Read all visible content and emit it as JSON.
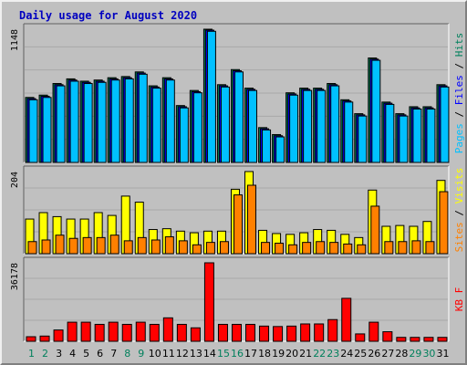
{
  "chart_data": {
    "title": "Daily usage for August 2020",
    "type": "bar",
    "days": [
      "1",
      "2",
      "3",
      "4",
      "5",
      "6",
      "7",
      "8",
      "9",
      "10",
      "11",
      "12",
      "13",
      "14",
      "15",
      "16",
      "17",
      "18",
      "19",
      "20",
      "21",
      "22",
      "23",
      "24",
      "25",
      "26",
      "27",
      "28",
      "29",
      "30",
      "31"
    ],
    "weekend_days": [
      "1",
      "2",
      "8",
      "9",
      "15",
      "16",
      "22",
      "23",
      "29",
      "30"
    ],
    "colors": {
      "hits": "#00805c",
      "files": "#0000ff",
      "pages": "#00c0ff",
      "visits": "#ffff00",
      "sites": "#ff8000",
      "kbytes": "#ff0000",
      "weekday_label": "#000000",
      "weekend_label": "#00805c"
    },
    "panels": [
      {
        "id": "hits",
        "ymax_label": "1148",
        "ymax": 1148,
        "legend": [
          "Pages",
          "/",
          "Files",
          "/",
          "Hits"
        ],
        "series": [
          {
            "name": "Hits",
            "values": [
              560,
              580,
              680,
              720,
              700,
              710,
              730,
              740,
              780,
              660,
              730,
              490,
              620,
              1148,
              670,
              800,
              640,
              300,
              240,
              600,
              640,
              640,
              680,
              540,
              420,
              900,
              520,
              420,
              480,
              480,
              670
            ]
          },
          {
            "name": "Files",
            "values": [
              550,
              570,
              670,
              710,
              690,
              700,
              720,
              730,
              770,
              650,
              720,
              480,
              610,
              1140,
              660,
              790,
              630,
              290,
              230,
              590,
              630,
              630,
              670,
              530,
              410,
              890,
              510,
              410,
              470,
              470,
              660
            ]
          },
          {
            "name": "Pages",
            "values": [
              540,
              560,
              660,
              700,
              680,
              690,
              710,
              720,
              760,
              640,
              710,
              470,
              600,
              1130,
              650,
              780,
              620,
              280,
              220,
              580,
              620,
              620,
              660,
              520,
              400,
              880,
              500,
              400,
              460,
              460,
              650
            ]
          }
        ]
      },
      {
        "id": "visits",
        "ymax_label": "204",
        "ymax": 204,
        "legend": [
          "Sites",
          "/",
          "Visits"
        ],
        "series": [
          {
            "name": "Visits",
            "values": [
              86,
              102,
              92,
              86,
              86,
              102,
              95,
              143,
              128,
              60,
              62,
              56,
              52,
              56,
              56,
              160,
              204,
              58,
              50,
              48,
              52,
              60,
              58,
              48,
              40,
              158,
              68,
              70,
              68,
              80,
              182
            ]
          },
          {
            "name": "Sites",
            "values": [
              30,
              34,
              46,
              38,
              40,
              40,
              46,
              32,
              40,
              34,
              42,
              32,
              22,
              28,
              30,
              146,
              170,
              28,
              26,
              22,
              28,
              30,
              28,
              24,
              22,
              118,
              30,
              30,
              32,
              30,
              154
            ]
          }
        ]
      },
      {
        "id": "kbytes",
        "ymax_label": "36178",
        "ymax": 36178,
        "legend": [
          "KB",
          "F"
        ],
        "series": [
          {
            "name": "KBytes",
            "values": [
              2100,
              2400,
              5200,
              8800,
              8800,
              7800,
              8800,
              7800,
              8800,
              7800,
              10800,
              7800,
              6200,
              36178,
              7800,
              7800,
              7800,
              7000,
              6800,
              7000,
              8000,
              8000,
              10000,
              19800,
              3400,
              8800,
              4400,
              1800,
              1800,
              1800,
              1800
            ]
          }
        ]
      }
    ]
  }
}
